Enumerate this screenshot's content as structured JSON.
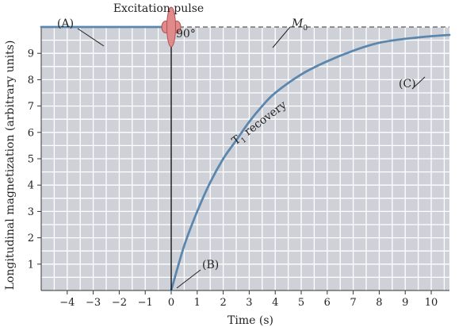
{
  "chart_data": {
    "type": "line",
    "title": "",
    "xlabel": "Time (s)",
    "ylabel": "Longitudinal magnetization (arbitrary units)",
    "xlim": [
      -5,
      10.7
    ],
    "ylim": [
      0,
      10
    ],
    "xticks": [
      -4,
      -3,
      -2,
      -1,
      0,
      1,
      2,
      3,
      4,
      5,
      6,
      7,
      8,
      9,
      10
    ],
    "yticks": [
      1,
      2,
      3,
      4,
      5,
      6,
      7,
      8,
      9
    ],
    "xtick_labels": [
      "−4",
      "−3",
      "−2",
      "−1",
      "0",
      "1",
      "2",
      "3",
      "4",
      "5",
      "6",
      "7",
      "8",
      "9",
      "10"
    ],
    "ytick_labels": [
      "1",
      "2",
      "3",
      "4",
      "5",
      "6",
      "7",
      "8",
      "9"
    ],
    "grid": true,
    "equilibrium_M0": 10,
    "colors": {
      "background": "#cfd1d9",
      "grid": "#ffffff",
      "curve": "#5b87ae",
      "pulse_fill": "#e08b8b",
      "pulse_stroke": "#b4514f"
    },
    "series": [
      {
        "values_x": [
          -5,
          -4,
          -3,
          -2,
          -1,
          0
        ],
        "values_y": [
          10,
          10,
          10,
          10,
          10,
          10
        ],
        "style": "solid"
      },
      {
        "values_x": [
          0,
          0.5,
          1,
          1.5,
          2,
          2.5,
          3,
          3.5,
          4,
          5,
          6,
          7,
          8,
          9,
          10,
          10.7
        ],
        "values_y": [
          0,
          1.7,
          3.0,
          4.1,
          5.0,
          5.7,
          6.4,
          7.0,
          7.5,
          8.2,
          8.7,
          9.1,
          9.4,
          9.55,
          9.65,
          9.7
        ],
        "style": "solid"
      }
    ],
    "annotations": {
      "a": "(A)",
      "b": "(B)",
      "c": "(C)",
      "pulse_title": "Excitation pulse",
      "pulse_angle": "90°",
      "m0_main": "M",
      "m0_sub": "0",
      "recovery_main": "T",
      "recovery_sub": "1",
      "recovery_rest": " recovery"
    }
  }
}
